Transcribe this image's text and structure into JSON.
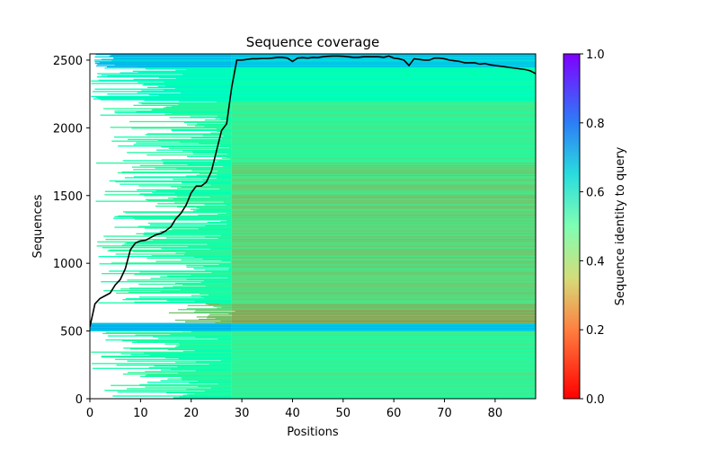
{
  "chart_data": {
    "type": "heatmap",
    "title": "Sequence coverage",
    "xlabel": "Positions",
    "ylabel": "Sequences",
    "xlim": [
      0,
      88
    ],
    "ylim": [
      0,
      2546
    ],
    "xticks": [
      0,
      10,
      20,
      30,
      40,
      50,
      60,
      70,
      80
    ],
    "yticks": [
      0,
      500,
      1000,
      1500,
      2000,
      2500
    ],
    "colorbar": {
      "label": "Sequence identity to query",
      "colormap": "rainbow_r",
      "range": [
        0,
        1
      ],
      "ticks": [
        "0.0",
        "0.2",
        "0.4",
        "0.6",
        "0.8",
        "1.0"
      ]
    },
    "row_bands": [
      {
        "seq_from": 0,
        "seq_to": 500,
        "start_min": 0,
        "start_max": 26,
        "identity_left": 0.45,
        "identity_right": 0.4
      },
      {
        "seq_from": 500,
        "seq_to": 560,
        "start_min": 0,
        "start_max": 0,
        "identity_left": 0.72,
        "identity_right": 0.7
      },
      {
        "seq_from": 560,
        "seq_to": 700,
        "start_min": 15,
        "start_max": 29,
        "identity_left": 0.28,
        "identity_right": 0.24
      },
      {
        "seq_from": 700,
        "seq_to": 1750,
        "start_min": 1,
        "start_max": 28,
        "identity_left": 0.45,
        "identity_right": 0.32
      },
      {
        "seq_from": 1750,
        "seq_to": 2200,
        "start_min": 2,
        "start_max": 28,
        "identity_left": 0.45,
        "identity_right": 0.4
      },
      {
        "seq_from": 2200,
        "seq_to": 2450,
        "start_min": 0,
        "start_max": 20,
        "identity_left": 0.55,
        "identity_right": 0.52
      },
      {
        "seq_from": 2450,
        "seq_to": 2546,
        "start_min": 0,
        "start_max": 5,
        "identity_left": 0.72,
        "identity_right": 0.7
      }
    ],
    "coverage_line": {
      "name": "coverage",
      "x_start": 0,
      "values": [
        530,
        700,
        740,
        760,
        780,
        840,
        880,
        960,
        1100,
        1150,
        1165,
        1170,
        1190,
        1210,
        1220,
        1240,
        1270,
        1330,
        1370,
        1430,
        1520,
        1570,
        1570,
        1600,
        1680,
        1830,
        1980,
        2030,
        2300,
        2500,
        2500,
        2505,
        2510,
        2510,
        2512,
        2512,
        2515,
        2520,
        2520,
        2515,
        2490,
        2515,
        2518,
        2515,
        2520,
        2518,
        2525,
        2528,
        2530,
        2530,
        2528,
        2525,
        2520,
        2520,
        2525,
        2525,
        2525,
        2525,
        2520,
        2530,
        2515,
        2510,
        2500,
        2460,
        2510,
        2505,
        2500,
        2500,
        2515,
        2515,
        2510,
        2500,
        2495,
        2490,
        2480,
        2480,
        2480,
        2470,
        2475,
        2465,
        2460,
        2455,
        2450,
        2445,
        2440,
        2435,
        2430,
        2420,
        2400
      ]
    }
  }
}
